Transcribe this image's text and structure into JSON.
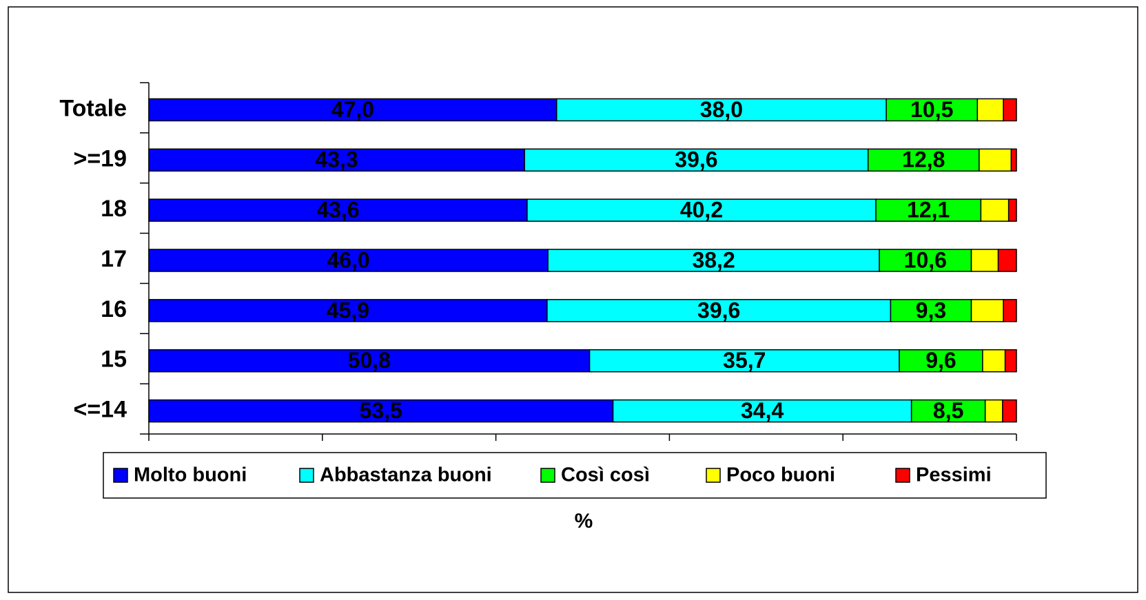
{
  "chart_data": {
    "type": "stacked_bar_horizontal",
    "categories": [
      "Totale",
      ">=19",
      "18",
      "17",
      "16",
      "15",
      "<=14"
    ],
    "series": [
      {
        "name": "Molto buoni",
        "color": "#0000ff",
        "values": [
          47.0,
          43.3,
          43.6,
          46.0,
          45.9,
          50.8,
          53.5
        ],
        "value_labels": [
          "47,0",
          "43,3",
          "43,6",
          "46,0",
          "45,9",
          "50,8",
          "53,5"
        ]
      },
      {
        "name": "Abbastanza buoni",
        "color": "#00ffff",
        "values": [
          38.0,
          39.6,
          40.2,
          38.2,
          39.6,
          35.7,
          34.4
        ],
        "value_labels": [
          "38,0",
          "39,6",
          "40,2",
          "38,2",
          "39,6",
          "35,7",
          "34,4"
        ]
      },
      {
        "name": "Così così",
        "color": "#00ff00",
        "values": [
          10.5,
          12.8,
          12.1,
          10.6,
          9.3,
          9.6,
          8.5
        ],
        "value_labels": [
          "10,5",
          "12,8",
          "12,1",
          "10,6",
          "9,3",
          "9,6",
          "8,5"
        ]
      },
      {
        "name": "Poco buoni",
        "color": "#ffff00",
        "values": [
          3.0,
          3.7,
          3.2,
          3.1,
          3.7,
          2.6,
          2.0
        ]
      },
      {
        "name": "Pessimi",
        "color": "#ff0000",
        "values": [
          1.5,
          0.6,
          0.9,
          2.1,
          1.5,
          1.3,
          1.6
        ]
      }
    ],
    "xlabel": "%",
    "xlim": [
      0,
      100
    ],
    "xticks": [
      0,
      20,
      40,
      60,
      80,
      100
    ],
    "legend": "bottom"
  }
}
